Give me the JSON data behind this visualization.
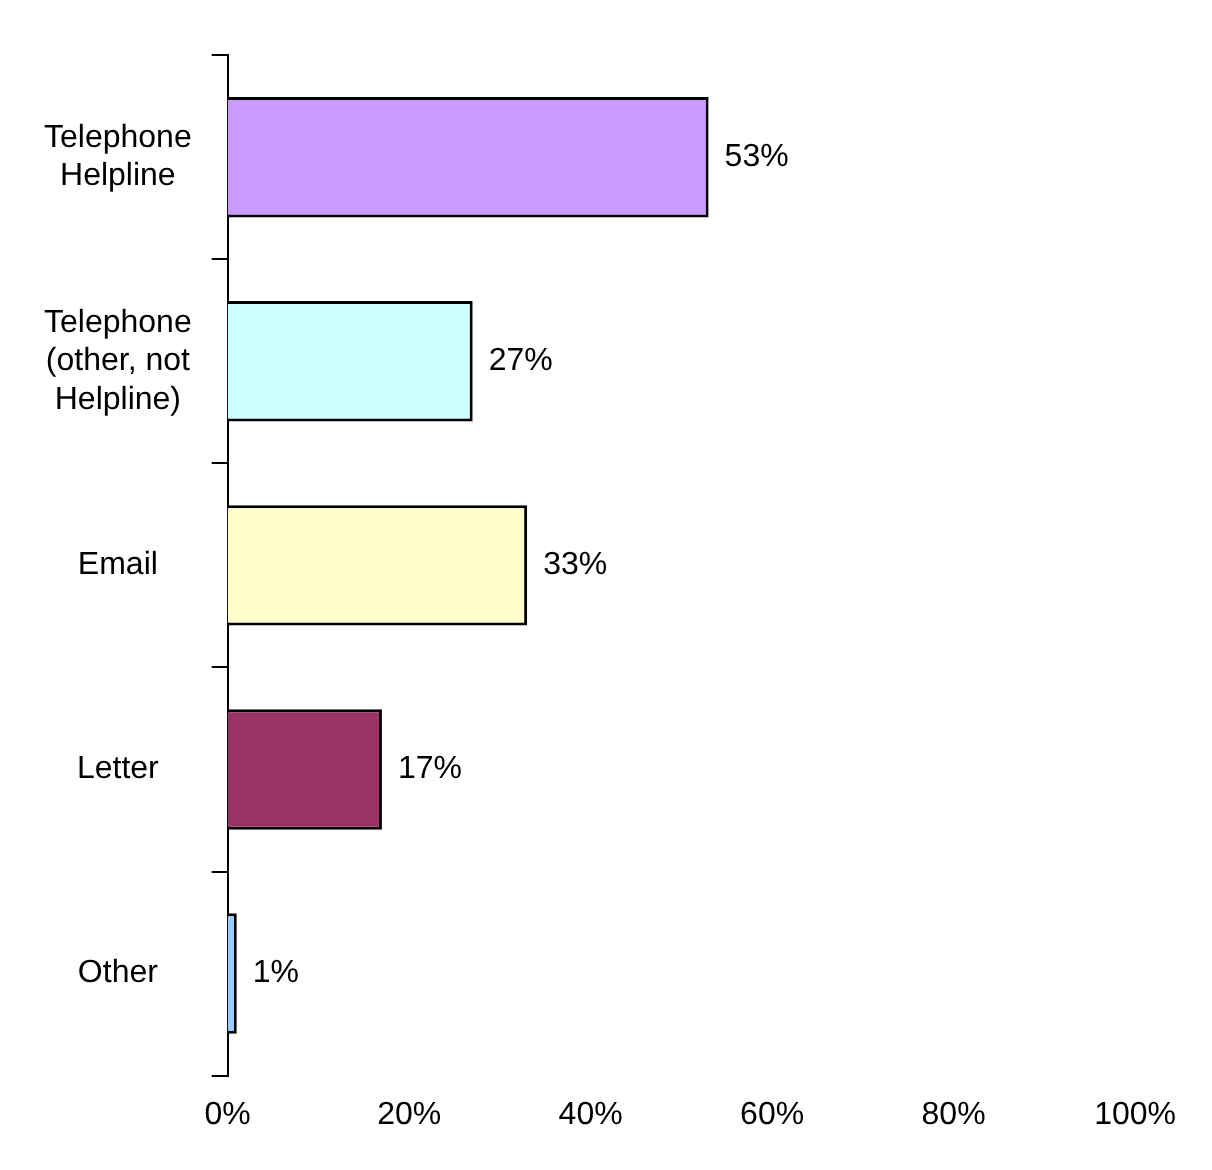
{
  "chart_data": {
    "type": "bar",
    "orientation": "horizontal",
    "categories": [
      "Telephone Helpline",
      "Telephone (other, not Helpline)",
      "Email",
      "Letter",
      "Other"
    ],
    "values": [
      53,
      27,
      33,
      17,
      1
    ],
    "colors": [
      "#cc99ff",
      "#ccffff",
      "#ffffcc",
      "#993366",
      "#99ccff"
    ],
    "value_labels": [
      "53%",
      "27%",
      "33%",
      "17%",
      "1%"
    ],
    "xlim": [
      0,
      100
    ],
    "xticks": [
      {
        "value": 0,
        "label": "0%"
      },
      {
        "value": 20,
        "label": "20%"
      },
      {
        "value": 40,
        "label": "40%"
      },
      {
        "value": 60,
        "label": "60%"
      },
      {
        "value": 80,
        "label": "80%"
      },
      {
        "value": 100,
        "label": "100%"
      }
    ],
    "grid": false,
    "legend": false
  }
}
